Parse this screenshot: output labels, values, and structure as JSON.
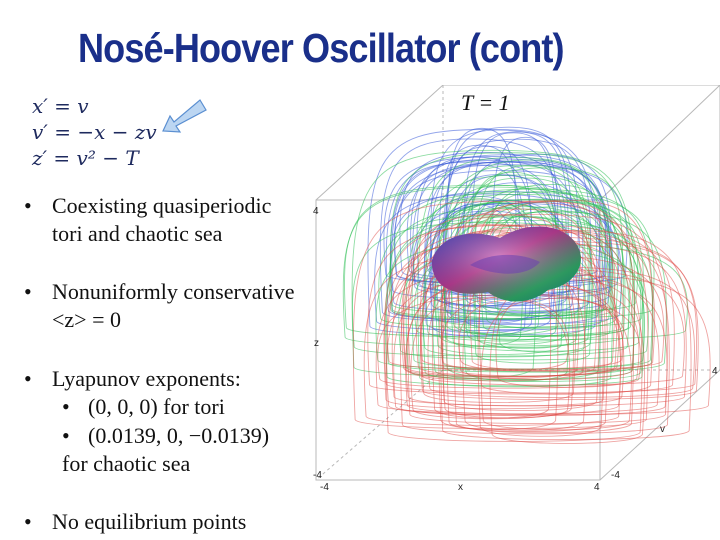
{
  "slide": {
    "title": "Nosé-Hoover Oscillator (cont)",
    "equations": [
      "x′ = v",
      "v′ = −x − zv",
      "z′ = v² − T"
    ],
    "bullets": [
      {
        "lines": [
          "Coexisting quasiperiodic",
          "tori and chaotic sea"
        ]
      },
      {
        "lines": [
          "Nonuniformly conservative",
          "<z> = 0"
        ]
      },
      {
        "lines": [
          "Lyapunov exponents:"
        ],
        "sub": [
          "(0, 0, 0) for tori",
          "(0.0139, 0, −0.0139)"
        ],
        "tail": "for chaotic sea"
      },
      {
        "lines": [
          "No equilibrium points"
        ]
      }
    ]
  },
  "plot": {
    "parameter_label": "T = 1",
    "axes": {
      "x": {
        "label": "x",
        "min": "-4",
        "max": "4"
      },
      "v": {
        "label": "v",
        "max": "4"
      },
      "z": {
        "label": "z",
        "min": "-4",
        "max": "4"
      }
    },
    "colors": {
      "top": "#3a5bd8",
      "middle": "#2fbf55",
      "bottom": "#e04a45",
      "torus": "#c43a8a"
    }
  },
  "arrow_color": "#aac8ee"
}
